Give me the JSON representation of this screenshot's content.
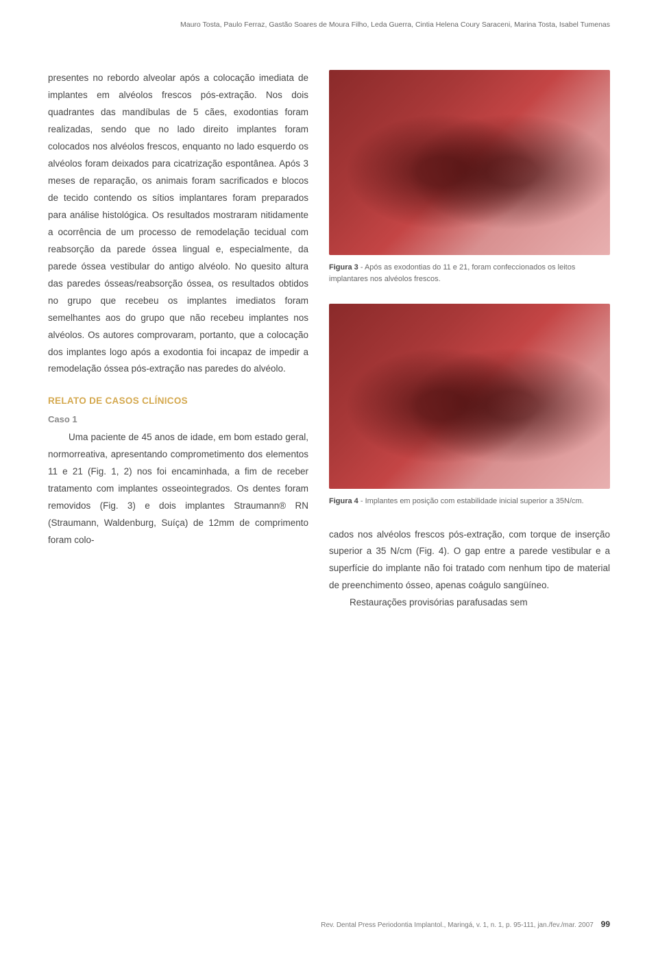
{
  "header": {
    "authors": "Mauro Tosta, Paulo Ferraz, Gastão Soares de Moura Filho, Leda Guerra, Cintia Helena Coury Saraceni, Marina Tosta, Isabel Tumenas"
  },
  "leftColumn": {
    "p1": "presentes no rebordo alveolar após a colocação imediata de implantes em alvéolos frescos pós-extração. Nos dois quadrantes das mandíbulas de 5 cães, exodontias foram realizadas, sendo que no lado direito implantes foram colocados nos alvéolos frescos, enquanto no lado esquerdo os alvéolos foram deixados para cicatrização espontânea. Após 3 meses de reparação, os animais foram sacrificados e blocos de tecido contendo os sítios implantares foram preparados para análise histológica. Os resultados mostraram nitidamente a ocorrência de um processo de remodelação tecidual com reabsorção da parede óssea lingual e, especialmente, da parede óssea vestibular do antigo alvéolo. No quesito altura das paredes ósseas/reabsorção óssea, os resultados obtidos no grupo que recebeu os implantes imediatos foram semelhantes aos do grupo que não recebeu implantes nos alvéolos. Os autores comprovaram, portanto, que a colocação dos implantes logo após a exodontia foi incapaz de impedir a remodelação óssea pós-extração nas paredes do alvéolo.",
    "sectionTitle": "RELATO DE CASOS CLÍNICOS",
    "caseLabel": "Caso 1",
    "p2": "Uma paciente de 45 anos de idade, em bom estado geral, normorreativa, apresentando comprometimento dos elementos 11 e 21 (Fig. 1, 2) nos foi encaminhada, a fim de receber tratamento com implantes osseointegrados. Os dentes foram removidos (Fig. 3) e dois implantes Straumann® RN (Straumann, Waldenburg, Suíça) de 12mm de comprimento foram colo-"
  },
  "figures": {
    "fig3": {
      "label": "Figura 3",
      "caption": " - Após as exodontias do 11 e 21, foram confeccionados os leitos implantares nos alvéolos frescos."
    },
    "fig4": {
      "label": "Figura 4",
      "caption": " - Implantes em posição com estabilidade inicial superior a 35N/cm."
    }
  },
  "rightColumn": {
    "p1": "cados nos alvéolos frescos pós-extração, com torque de inserção superior a 35 N/cm (Fig. 4). O gap entre a parede vestibular e a superfície do implante não foi tratado com nenhum tipo de material de preenchimento ósseo, apenas coágulo sangüíneo.",
    "p2": "Restaurações provisórias parafusadas sem"
  },
  "footer": {
    "citation": "Rev. Dental Press Periodontia Implantol., Maringá, v. 1, n. 1, p. 95-111, jan./fev./mar. 2007",
    "pageNumber": "99"
  }
}
